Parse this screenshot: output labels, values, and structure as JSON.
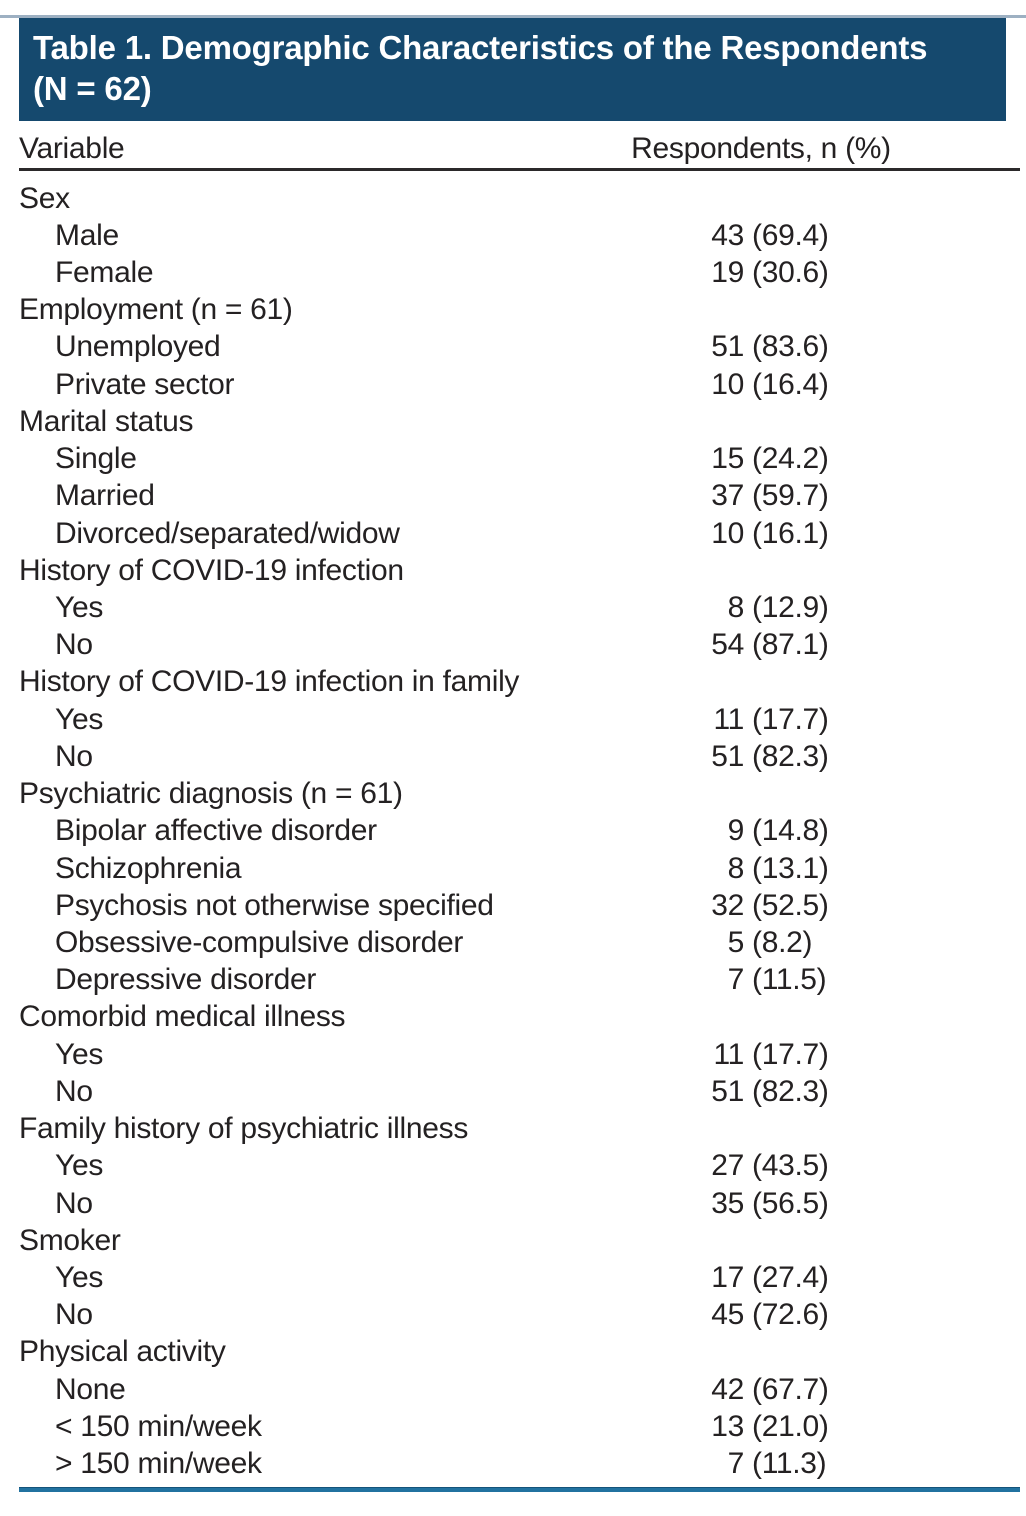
{
  "page": {
    "background": "#ffffff",
    "accent_navy": "#15496e",
    "bottom_rule_blue": "#2172a0",
    "top_line_color": "#9db0c2",
    "header_rule_color": "#2b292a",
    "text_color": "#242122",
    "title_text_color": "#ffffff"
  },
  "title": {
    "line1": "Table 1. Demographic Characteristics of the Respondents",
    "line2": "(N = 62)"
  },
  "columns": [
    "Variable",
    "Respondents, n (%)"
  ],
  "rows": [
    {
      "label": "Sex",
      "indent": false,
      "n": "",
      "pct": ""
    },
    {
      "label": "Male",
      "indent": true,
      "n": "43",
      "pct": "(69.4)"
    },
    {
      "label": "Female",
      "indent": true,
      "n": "19",
      "pct": "(30.6)"
    },
    {
      "label": "Employment (n = 61)",
      "indent": false,
      "n": "",
      "pct": ""
    },
    {
      "label": "Unemployed",
      "indent": true,
      "n": "51",
      "pct": "(83.6)"
    },
    {
      "label": "Private sector",
      "indent": true,
      "n": "10",
      "pct": "(16.4)"
    },
    {
      "label": "Marital status",
      "indent": false,
      "n": "",
      "pct": ""
    },
    {
      "label": "Single",
      "indent": true,
      "n": "15",
      "pct": "(24.2)"
    },
    {
      "label": "Married",
      "indent": true,
      "n": "37",
      "pct": "(59.7)"
    },
    {
      "label": "Divorced/separated/widow",
      "indent": true,
      "n": "10",
      "pct": "(16.1)"
    },
    {
      "label": "History of COVID-19 infection",
      "indent": false,
      "n": "",
      "pct": ""
    },
    {
      "label": "Yes",
      "indent": true,
      "n": "8",
      "pct": "(12.9)"
    },
    {
      "label": "No",
      "indent": true,
      "n": "54",
      "pct": "(87.1)"
    },
    {
      "label": "History of COVID-19 infection in family",
      "indent": false,
      "n": "",
      "pct": ""
    },
    {
      "label": "Yes",
      "indent": true,
      "n": "11",
      "pct": "(17.7)"
    },
    {
      "label": "No",
      "indent": true,
      "n": "51",
      "pct": "(82.3)"
    },
    {
      "label": "Psychiatric diagnosis (n = 61)",
      "indent": false,
      "n": "",
      "pct": ""
    },
    {
      "label": "Bipolar affective disorder",
      "indent": true,
      "n": "9",
      "pct": "(14.8)"
    },
    {
      "label": "Schizophrenia",
      "indent": true,
      "n": "8",
      "pct": "(13.1)"
    },
    {
      "label": "Psychosis not otherwise specified",
      "indent": true,
      "n": "32",
      "pct": "(52.5)"
    },
    {
      "label": "Obsessive-compulsive disorder",
      "indent": true,
      "n": "5",
      "pct": "(8.2)"
    },
    {
      "label": "Depressive disorder",
      "indent": true,
      "n": "7",
      "pct": "(11.5)"
    },
    {
      "label": "Comorbid medical illness",
      "indent": false,
      "n": "",
      "pct": ""
    },
    {
      "label": "Yes",
      "indent": true,
      "n": "11",
      "pct": "(17.7)"
    },
    {
      "label": "No",
      "indent": true,
      "n": "51",
      "pct": "(82.3)"
    },
    {
      "label": "Family history of psychiatric illness",
      "indent": false,
      "n": "",
      "pct": ""
    },
    {
      "label": "Yes",
      "indent": true,
      "n": "27",
      "pct": "(43.5)"
    },
    {
      "label": "No",
      "indent": true,
      "n": "35",
      "pct": "(56.5)"
    },
    {
      "label": "Smoker",
      "indent": false,
      "n": "",
      "pct": ""
    },
    {
      "label": "Yes",
      "indent": true,
      "n": "17",
      "pct": "(27.4)"
    },
    {
      "label": "No",
      "indent": true,
      "n": "45",
      "pct": "(72.6)"
    },
    {
      "label": "Physical activity",
      "indent": false,
      "n": "",
      "pct": ""
    },
    {
      "label": "None",
      "indent": true,
      "n": "42",
      "pct": "(67.7)"
    },
    {
      "label": "< 150 min/week",
      "indent": true,
      "n": "13",
      "pct": "(21.0)"
    },
    {
      "label": "> 150 min/week",
      "indent": true,
      "n": "7",
      "pct": "(11.3)"
    }
  ]
}
